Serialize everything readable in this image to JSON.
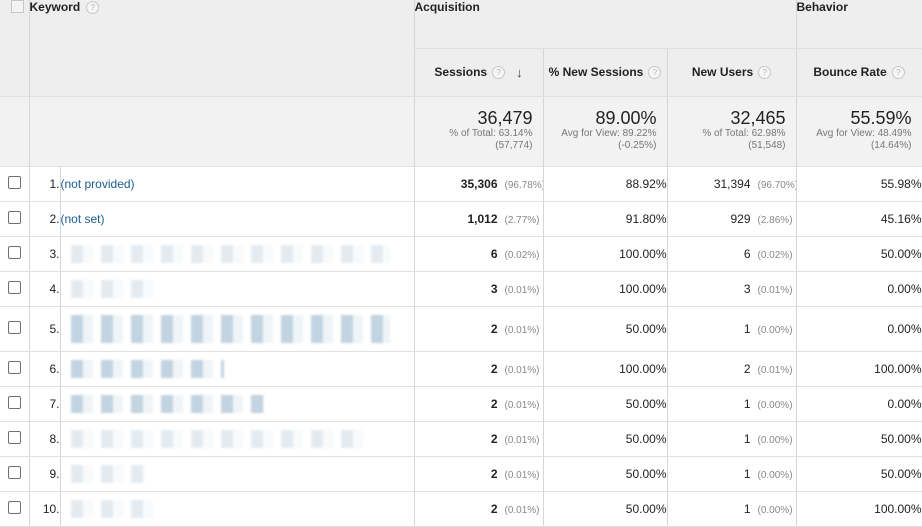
{
  "header": {
    "keyword_label": "Keyword",
    "groups": {
      "acquisition": "Acquisition",
      "behavior": "Behavior"
    },
    "columns": {
      "sessions": "Sessions",
      "new_sessions_pct": "% New Sessions",
      "new_users": "New Users",
      "bounce_rate": "Bounce Rate"
    },
    "help_glyph": "?",
    "sort_glyph": "↓"
  },
  "totals": {
    "sessions": {
      "value": "36,479",
      "line1": "% of Total: 63.14%",
      "line2": "(57,774)"
    },
    "new_sessions_pct": {
      "value": "89.00%",
      "line1": "Avg for View: 89.22%",
      "line2": "(-0.25%)"
    },
    "new_users": {
      "value": "32,465",
      "line1": "% of Total: 62.98%",
      "line2": "(51,548)"
    },
    "bounce_rate": {
      "value": "55.59%",
      "line1": "Avg for View: 48.49%",
      "line2": "(14.64%)"
    }
  },
  "rows": [
    {
      "index": "1.",
      "keyword": "(not provided)",
      "sessions": "35,306",
      "sessions_pct": "(96.78%)",
      "new_sessions_pct": "88.92%",
      "new_users": "31,394",
      "new_users_pct": "(96.70%)",
      "bounce_rate": "55.98%"
    },
    {
      "index": "2.",
      "keyword": "(not set)",
      "sessions": "1,012",
      "sessions_pct": "(2.77%)",
      "new_sessions_pct": "91.80%",
      "new_users": "929",
      "new_users_pct": "(2.86%)",
      "bounce_rate": "45.16%"
    },
    {
      "index": "3.",
      "keyword": "",
      "sessions": "6",
      "sessions_pct": "(0.02%)",
      "new_sessions_pct": "100.00%",
      "new_users": "6",
      "new_users_pct": "(0.02%)",
      "bounce_rate": "50.00%"
    },
    {
      "index": "4.",
      "keyword": "",
      "sessions": "3",
      "sessions_pct": "(0.01%)",
      "new_sessions_pct": "100.00%",
      "new_users": "3",
      "new_users_pct": "(0.01%)",
      "bounce_rate": "0.00%"
    },
    {
      "index": "5.",
      "keyword": "",
      "sessions": "2",
      "sessions_pct": "(0.01%)",
      "new_sessions_pct": "50.00%",
      "new_users": "1",
      "new_users_pct": "(0.00%)",
      "bounce_rate": "0.00%"
    },
    {
      "index": "6.",
      "keyword": "",
      "sessions": "2",
      "sessions_pct": "(0.01%)",
      "new_sessions_pct": "100.00%",
      "new_users": "2",
      "new_users_pct": "(0.01%)",
      "bounce_rate": "100.00%"
    },
    {
      "index": "7.",
      "keyword": "",
      "sessions": "2",
      "sessions_pct": "(0.01%)",
      "new_sessions_pct": "50.00%",
      "new_users": "1",
      "new_users_pct": "(0.00%)",
      "bounce_rate": "0.00%"
    },
    {
      "index": "8.",
      "keyword": "",
      "sessions": "2",
      "sessions_pct": "(0.01%)",
      "new_sessions_pct": "50.00%",
      "new_users": "1",
      "new_users_pct": "(0.00%)",
      "bounce_rate": "50.00%"
    },
    {
      "index": "9.",
      "keyword": "",
      "sessions": "2",
      "sessions_pct": "(0.01%)",
      "new_sessions_pct": "50.00%",
      "new_users": "1",
      "new_users_pct": "(0.00%)",
      "bounce_rate": "50.00%"
    },
    {
      "index": "10.",
      "keyword": "",
      "sessions": "2",
      "sessions_pct": "(0.01%)",
      "new_sessions_pct": "50.00%",
      "new_users": "1",
      "new_users_pct": "(0.00%)",
      "bounce_rate": "100.00%"
    }
  ]
}
